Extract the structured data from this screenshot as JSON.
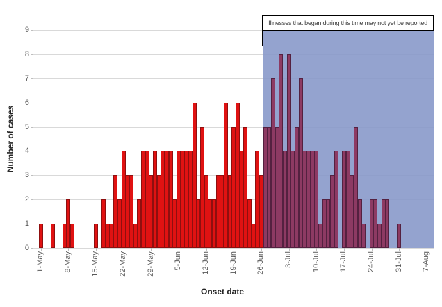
{
  "chart_data": {
    "type": "bar",
    "title": "",
    "xlabel": "Onset date",
    "ylabel": "Number of cases",
    "ylim": [
      0,
      9
    ],
    "yticks": [
      0,
      1,
      2,
      3,
      4,
      5,
      6,
      7,
      8,
      9
    ],
    "grid": true,
    "legend": "none",
    "bar_unit": "day",
    "x_range": [
      "1-May",
      "7-Aug"
    ],
    "x_tick_labels": [
      "1-May",
      "8-May",
      "15-May",
      "22-May",
      "29-May",
      "5-Jun",
      "12-Jun",
      "19-Jun",
      "26-Jun",
      "3-Jul",
      "10-Jul",
      "17-Jul",
      "24-Jul",
      "31-Jul",
      "7-Aug"
    ],
    "x_tick_interval_days": 7,
    "values": [
      1,
      0,
      0,
      1,
      0,
      0,
      1,
      2,
      1,
      0,
      0,
      0,
      0,
      0,
      1,
      0,
      2,
      1,
      1,
      3,
      2,
      4,
      3,
      3,
      1,
      2,
      4,
      4,
      3,
      4,
      3,
      4,
      4,
      4,
      2,
      4,
      4,
      4,
      4,
      6,
      2,
      5,
      3,
      2,
      2,
      3,
      3,
      6,
      3,
      5,
      6,
      4,
      5,
      2,
      1,
      4,
      3,
      5,
      5,
      7,
      5,
      8,
      4,
      8,
      4,
      5,
      7,
      4,
      4,
      4,
      4,
      1,
      2,
      2,
      3,
      4,
      0,
      4,
      4,
      3,
      5,
      2,
      1,
      0,
      2,
      2,
      1,
      2,
      2,
      0,
      0,
      1,
      0,
      0,
      0,
      0,
      0,
      0,
      0
    ],
    "unreported_region": {
      "text": "Illnesses that began during this time may not yet be reported",
      "start_day_index": 57,
      "start_date": "27-Jun"
    },
    "colors": {
      "bar_red": "#e01212",
      "bar_red_border": "#8f0f0f",
      "bar_purple": "#8d3a63",
      "bar_purple_border": "#542140",
      "overlay_blue": "#94a3cf",
      "gridline": "#d9d9d9",
      "tick_text": "#595959",
      "axis_title_text": "#262626"
    }
  }
}
